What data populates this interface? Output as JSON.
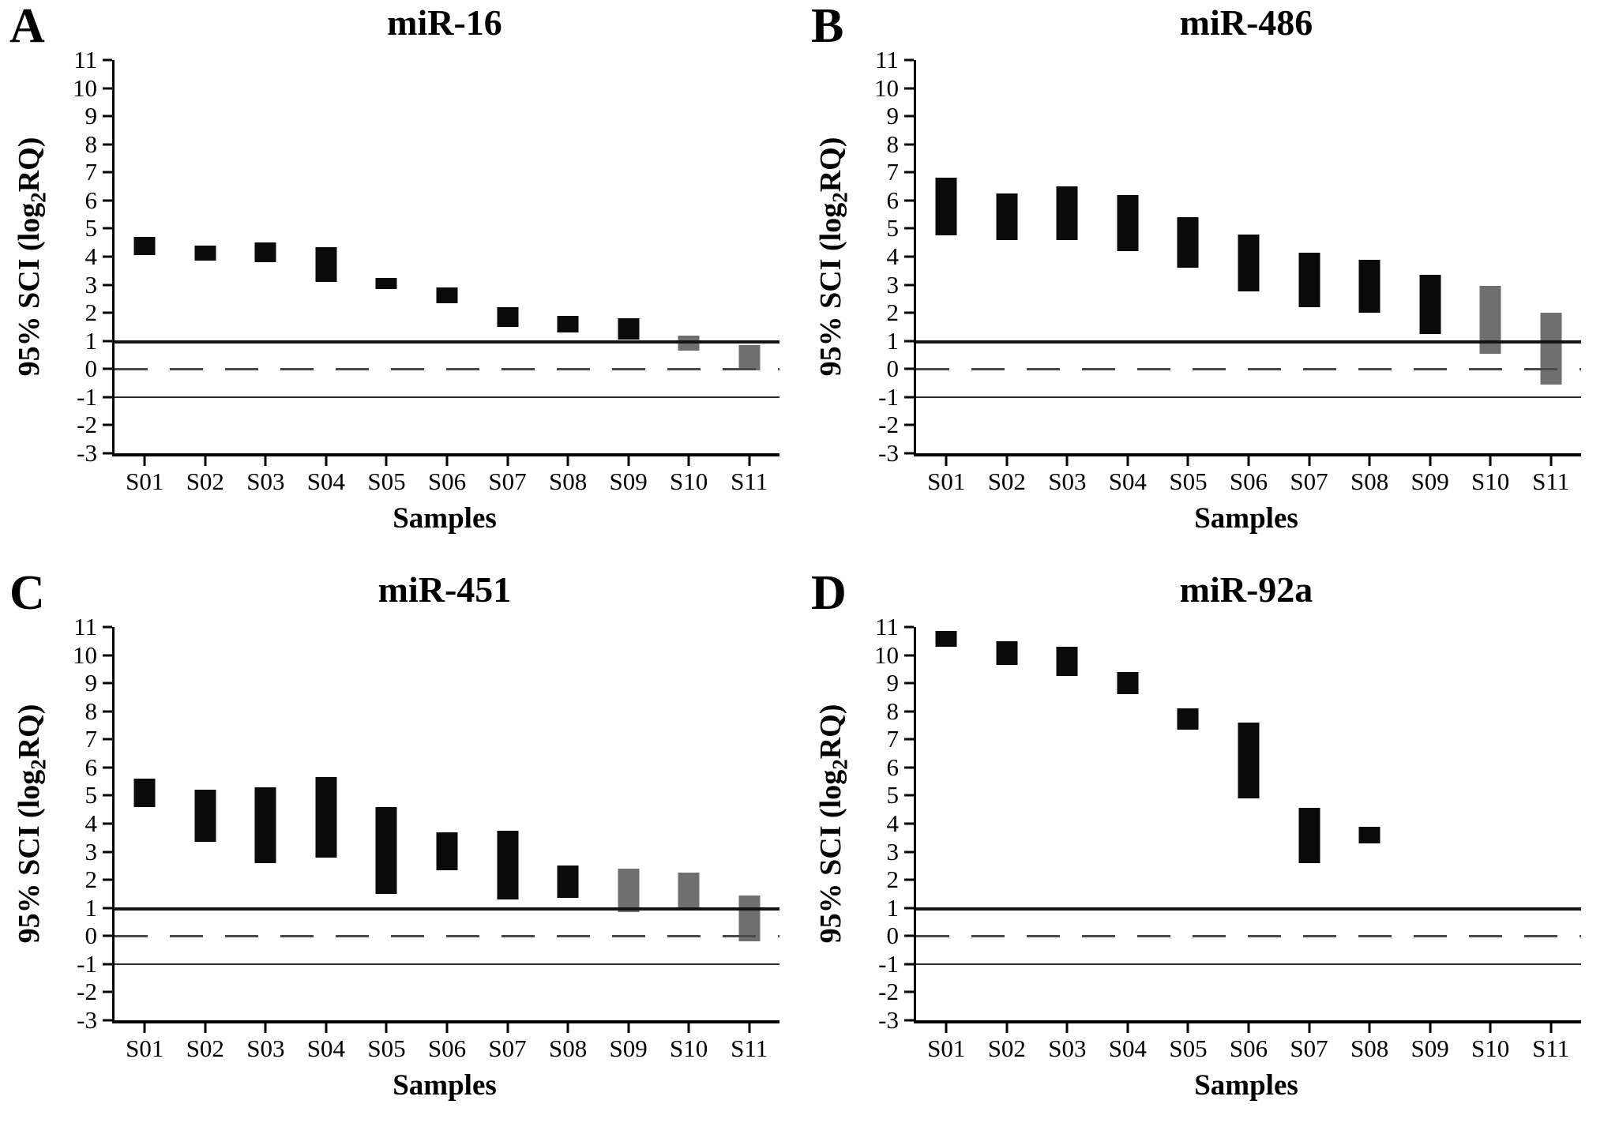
{
  "labels": {
    "ylabel_pre": "95% SCI (log",
    "ylabel_sub": "2",
    "ylabel_post": "RQ)"
  },
  "colors": {
    "bar_black": "#0a0a0a",
    "bar_gray": "#6f6f6f",
    "axis": "#000000",
    "ref_solid": "#141414",
    "ref_dashed": "#4a4a4a"
  },
  "chart_data": [
    {
      "type": "bar",
      "subtype": "floating-range",
      "panel": "A",
      "title": "miR-16",
      "xlabel": "Samples",
      "ylabel": "95% SCI (log2RQ)",
      "ylim": [
        -3,
        11
      ],
      "ytick_step": 1,
      "grid": false,
      "legend": false,
      "reference_lines": [
        {
          "y": 1,
          "style": "solid",
          "weight": "thick"
        },
        {
          "y": 0,
          "style": "dashed",
          "weight": "thin"
        },
        {
          "y": -1,
          "style": "solid",
          "weight": "thin"
        }
      ],
      "categories": [
        "S01",
        "S02",
        "S03",
        "S04",
        "S05",
        "S06",
        "S07",
        "S08",
        "S09",
        "S10",
        "S11"
      ],
      "bars": [
        {
          "label": "S01",
          "low": 4.05,
          "high": 4.7,
          "color": "black"
        },
        {
          "label": "S02",
          "low": 3.85,
          "high": 4.4,
          "color": "black"
        },
        {
          "label": "S03",
          "low": 3.8,
          "high": 4.5,
          "color": "black"
        },
        {
          "label": "S04",
          "low": 3.1,
          "high": 4.35,
          "color": "black"
        },
        {
          "label": "S05",
          "low": 2.85,
          "high": 3.25,
          "color": "black"
        },
        {
          "label": "S06",
          "low": 2.35,
          "high": 2.9,
          "color": "black"
        },
        {
          "label": "S07",
          "low": 1.5,
          "high": 2.2,
          "color": "black"
        },
        {
          "label": "S08",
          "low": 1.3,
          "high": 1.9,
          "color": "black"
        },
        {
          "label": "S09",
          "low": 1.05,
          "high": 1.8,
          "color": "black"
        },
        {
          "label": "S10",
          "low": 0.65,
          "high": 1.2,
          "color": "gray"
        },
        {
          "label": "S11",
          "low": -0.05,
          "high": 0.85,
          "color": "gray"
        }
      ]
    },
    {
      "type": "bar",
      "subtype": "floating-range",
      "panel": "B",
      "title": "miR-486",
      "xlabel": "Samples",
      "ylabel": "95% SCI (log2RQ)",
      "ylim": [
        -3,
        11
      ],
      "ytick_step": 1,
      "grid": false,
      "legend": false,
      "reference_lines": [
        {
          "y": 1,
          "style": "solid",
          "weight": "thick"
        },
        {
          "y": 0,
          "style": "dashed",
          "weight": "thin"
        },
        {
          "y": -1,
          "style": "solid",
          "weight": "thin"
        }
      ],
      "categories": [
        "S01",
        "S02",
        "S03",
        "S04",
        "S05",
        "S06",
        "S07",
        "S08",
        "S09",
        "S10",
        "S11"
      ],
      "bars": [
        {
          "label": "S01",
          "low": 4.75,
          "high": 6.8,
          "color": "black"
        },
        {
          "label": "S02",
          "low": 4.6,
          "high": 6.25,
          "color": "black"
        },
        {
          "label": "S03",
          "low": 4.6,
          "high": 6.5,
          "color": "black"
        },
        {
          "label": "S04",
          "low": 4.2,
          "high": 6.2,
          "color": "black"
        },
        {
          "label": "S05",
          "low": 3.6,
          "high": 5.4,
          "color": "black"
        },
        {
          "label": "S06",
          "low": 2.75,
          "high": 4.8,
          "color": "black"
        },
        {
          "label": "S07",
          "low": 2.2,
          "high": 4.15,
          "color": "black"
        },
        {
          "label": "S08",
          "low": 2.0,
          "high": 3.9,
          "color": "black"
        },
        {
          "label": "S09",
          "low": 1.25,
          "high": 3.35,
          "color": "black"
        },
        {
          "label": "S10",
          "low": 0.55,
          "high": 2.95,
          "color": "gray"
        },
        {
          "label": "S11",
          "low": -0.55,
          "high": 2.0,
          "color": "gray"
        }
      ]
    },
    {
      "type": "bar",
      "subtype": "floating-range",
      "panel": "C",
      "title": "miR-451",
      "xlabel": "Samples",
      "ylabel": "95% SCI (log2RQ)",
      "ylim": [
        -3,
        11
      ],
      "ytick_step": 1,
      "grid": false,
      "legend": false,
      "reference_lines": [
        {
          "y": 1,
          "style": "solid",
          "weight": "thick"
        },
        {
          "y": 0,
          "style": "dashed",
          "weight": "thin"
        },
        {
          "y": -1,
          "style": "solid",
          "weight": "thin"
        }
      ],
      "categories": [
        "S01",
        "S02",
        "S03",
        "S04",
        "S05",
        "S06",
        "S07",
        "S08",
        "S09",
        "S10",
        "S11"
      ],
      "bars": [
        {
          "label": "S01",
          "low": 4.6,
          "high": 5.6,
          "color": "black"
        },
        {
          "label": "S02",
          "low": 3.35,
          "high": 5.2,
          "color": "black"
        },
        {
          "label": "S03",
          "low": 2.6,
          "high": 5.3,
          "color": "black"
        },
        {
          "label": "S04",
          "low": 2.8,
          "high": 5.65,
          "color": "black"
        },
        {
          "label": "S05",
          "low": 1.5,
          "high": 4.6,
          "color": "black"
        },
        {
          "label": "S06",
          "low": 2.35,
          "high": 3.7,
          "color": "black"
        },
        {
          "label": "S07",
          "low": 1.3,
          "high": 3.75,
          "color": "black"
        },
        {
          "label": "S08",
          "low": 1.35,
          "high": 2.5,
          "color": "black"
        },
        {
          "label": "S09",
          "low": 0.85,
          "high": 2.4,
          "color": "gray"
        },
        {
          "label": "S10",
          "low": 0.95,
          "high": 2.25,
          "color": "gray"
        },
        {
          "label": "S11",
          "low": -0.2,
          "high": 1.45,
          "color": "gray"
        }
      ]
    },
    {
      "type": "bar",
      "subtype": "floating-range",
      "panel": "D",
      "title": "miR-92a",
      "xlabel": "Samples",
      "ylabel": "95% SCI (log2RQ)",
      "ylim": [
        -3,
        11
      ],
      "ytick_step": 1,
      "grid": false,
      "legend": false,
      "reference_lines": [
        {
          "y": 1,
          "style": "solid",
          "weight": "thick"
        },
        {
          "y": 0,
          "style": "dashed",
          "weight": "thin"
        },
        {
          "y": -1,
          "style": "solid",
          "weight": "thin"
        }
      ],
      "categories": [
        "S01",
        "S02",
        "S03",
        "S04",
        "S05",
        "S06",
        "S07",
        "S08",
        "S09",
        "S10",
        "S11"
      ],
      "bars": [
        {
          "label": "S01",
          "low": 10.3,
          "high": 10.85,
          "color": "black"
        },
        {
          "label": "S02",
          "low": 9.65,
          "high": 10.5,
          "color": "black"
        },
        {
          "label": "S03",
          "low": 9.25,
          "high": 10.3,
          "color": "black"
        },
        {
          "label": "S04",
          "low": 8.6,
          "high": 9.4,
          "color": "black"
        },
        {
          "label": "S05",
          "low": 7.35,
          "high": 8.1,
          "color": "black"
        },
        {
          "label": "S06",
          "low": 4.9,
          "high": 7.6,
          "color": "black"
        },
        {
          "label": "S07",
          "low": 2.6,
          "high": 4.55,
          "color": "black"
        },
        {
          "label": "S08",
          "low": 3.3,
          "high": 3.9,
          "color": "black"
        },
        {
          "label": "S09",
          "low": null,
          "high": null,
          "color": "black"
        },
        {
          "label": "S10",
          "low": null,
          "high": null,
          "color": "black"
        },
        {
          "label": "S11",
          "low": null,
          "high": null,
          "color": "black"
        }
      ]
    }
  ]
}
